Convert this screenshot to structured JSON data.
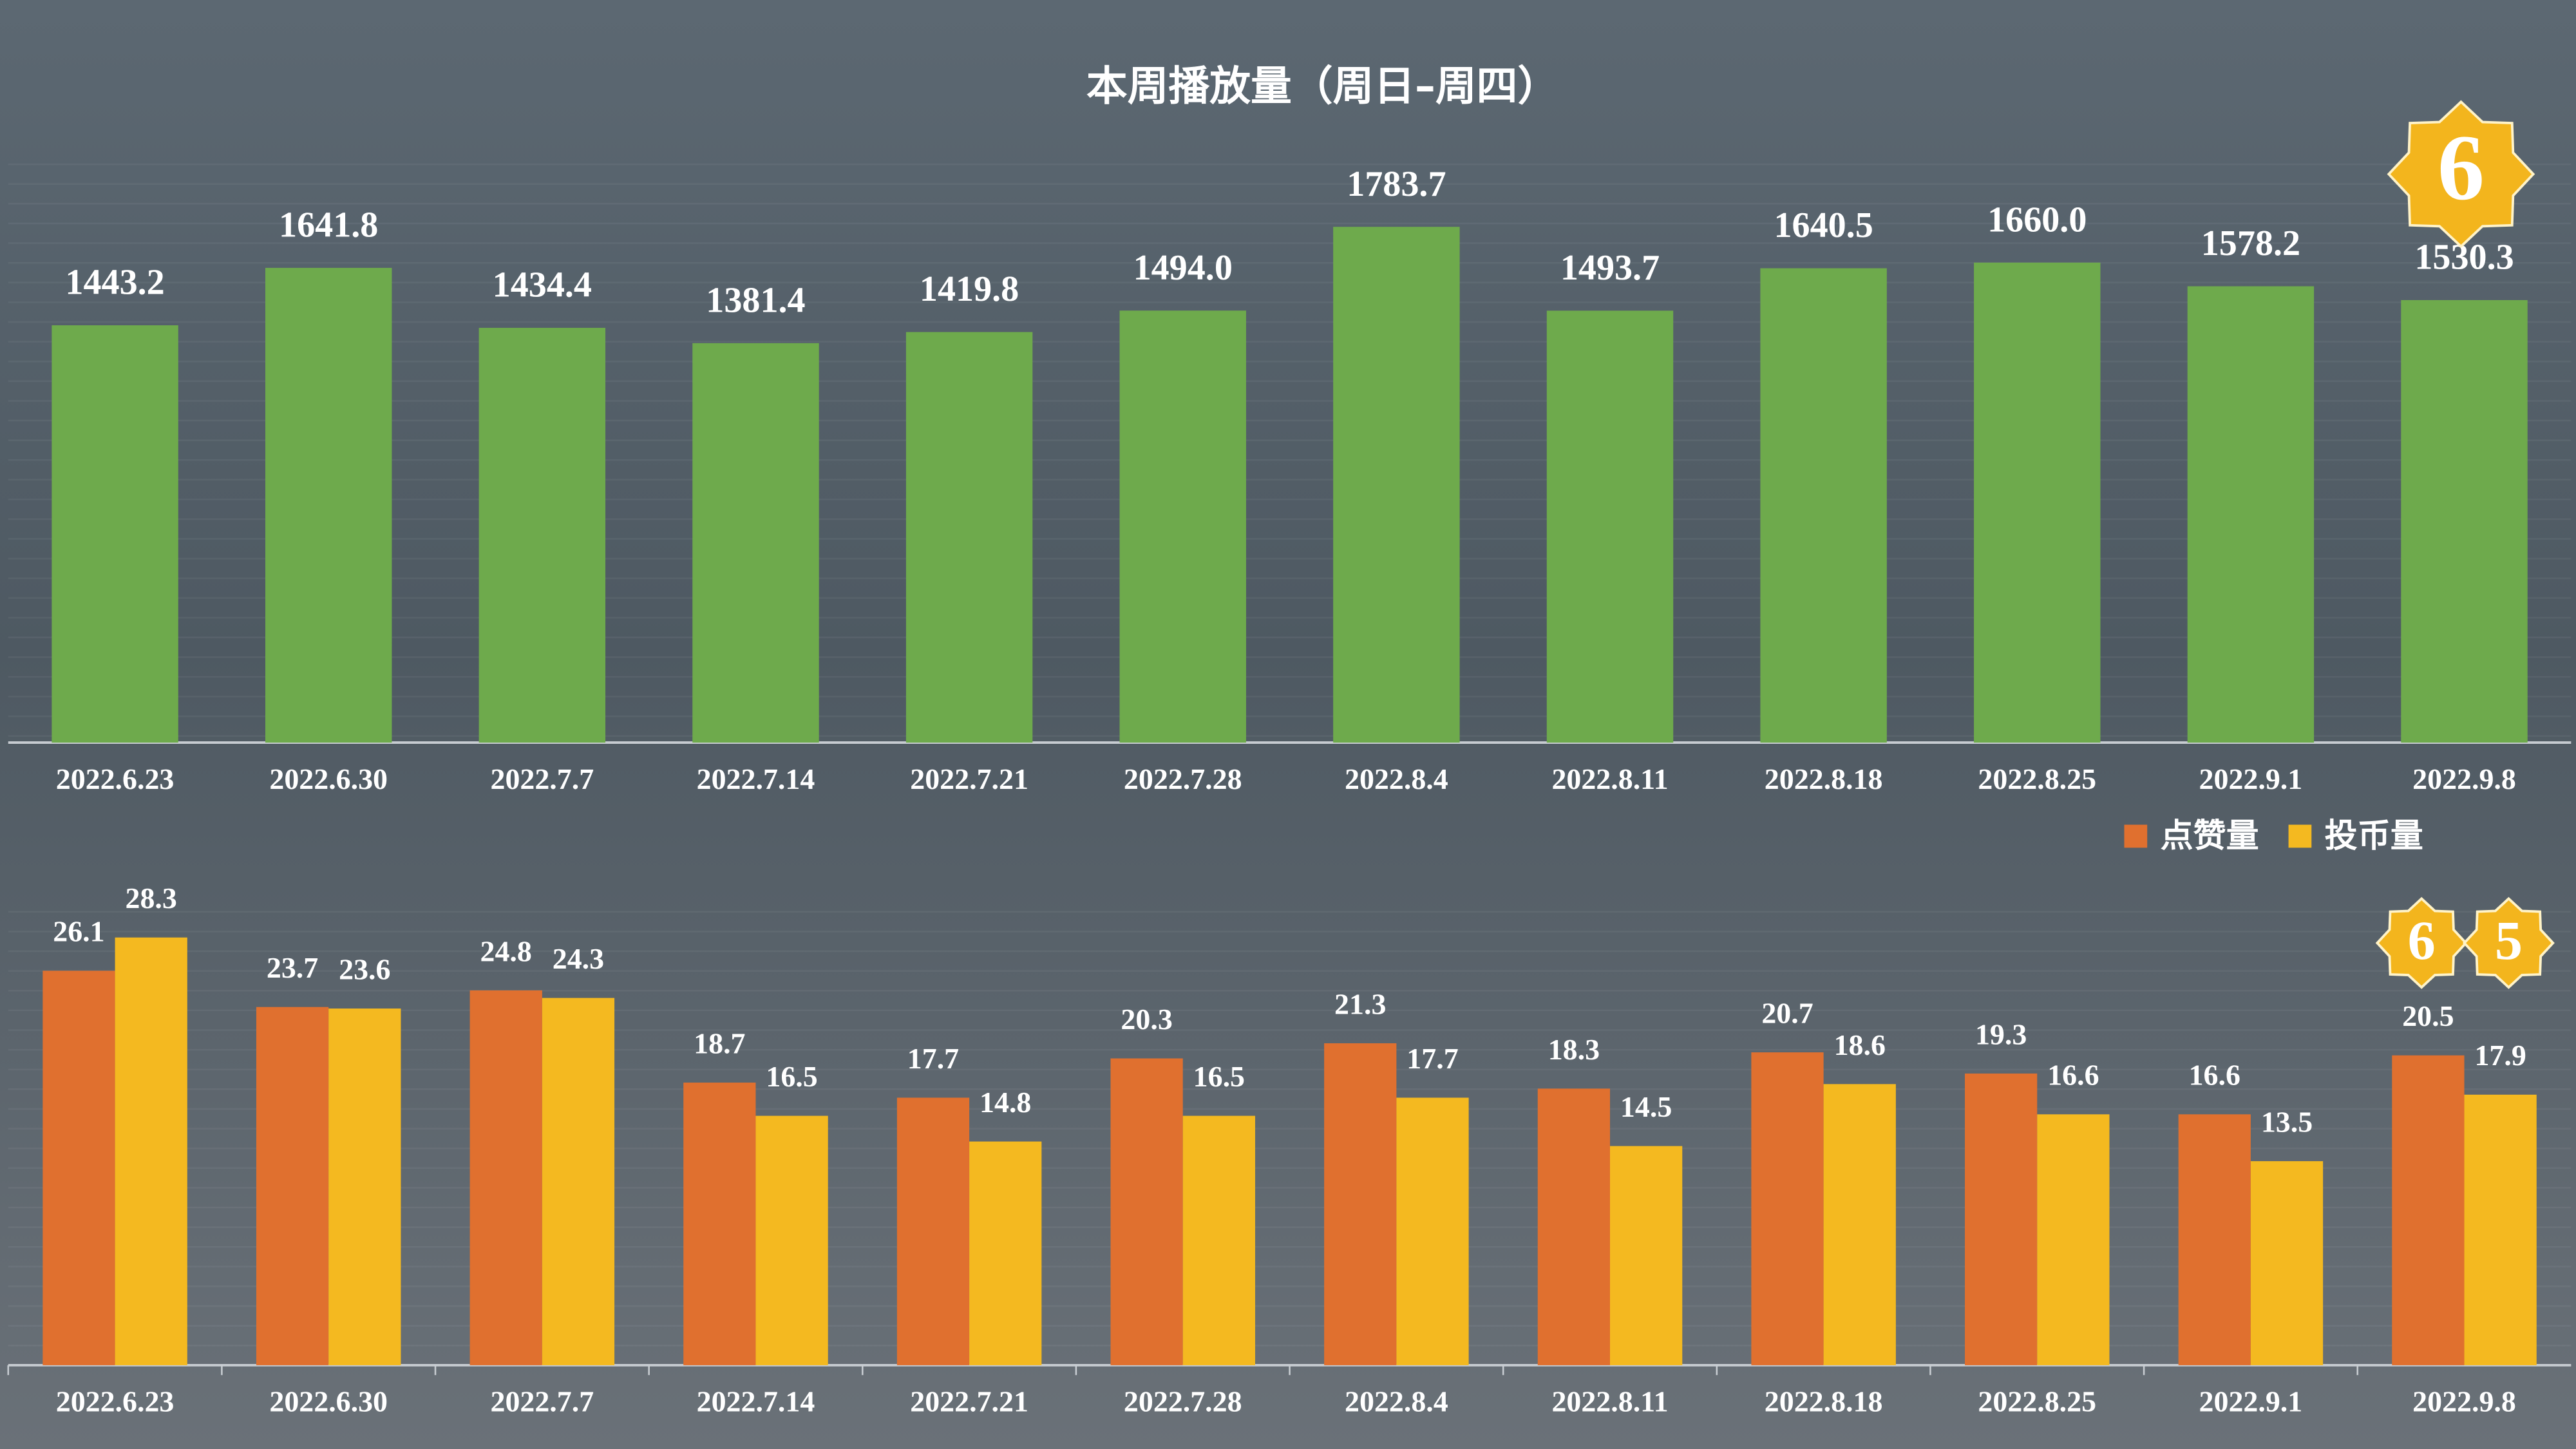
{
  "chart_data": [
    {
      "type": "bar",
      "title": "本周播放量（周日–周四）",
      "categories": [
        "2022.6.23",
        "2022.6.30",
        "2022.7.7",
        "2022.7.14",
        "2022.7.21",
        "2022.7.28",
        "2022.8.4",
        "2022.8.11",
        "2022.8.18",
        "2022.8.25",
        "2022.9.1",
        "2022.9.8"
      ],
      "values": [
        1443.2,
        1641.8,
        1434.4,
        1381.4,
        1419.8,
        1494,
        1783.7,
        1493.7,
        1640.5,
        1660,
        1578.2,
        1530.3
      ],
      "value_labels": [
        "1443.2",
        "1641.8",
        "1434.4",
        "1381.4",
        "1419.8",
        "1494.0",
        "1783.7",
        "1493.7",
        "1640.5",
        "1660.0",
        "1578.2",
        "1530.3"
      ],
      "color": "#6eaa4c",
      "ylim": [
        0,
        2000
      ],
      "annotations": [
        "6"
      ]
    },
    {
      "type": "bar",
      "categories": [
        "2022.6.23",
        "2022.6.30",
        "2022.7.7",
        "2022.7.14",
        "2022.7.21",
        "2022.7.28",
        "2022.8.4",
        "2022.8.11",
        "2022.8.18",
        "2022.8.25",
        "2022.9.1",
        "2022.9.8"
      ],
      "series": [
        {
          "name": "点赞量",
          "color": "#e0702f",
          "values": [
            26.1,
            23.7,
            24.8,
            18.7,
            17.7,
            20.3,
            21.3,
            18.3,
            20.7,
            19.3,
            16.6,
            20.5
          ]
        },
        {
          "name": "投币量",
          "color": "#f4b920",
          "values": [
            28.3,
            23.6,
            24.3,
            16.5,
            14.8,
            16.5,
            17.7,
            14.5,
            18.6,
            16.6,
            13.5,
            17.9
          ]
        }
      ],
      "ylim": [
        0,
        30
      ],
      "legend": "top-right",
      "annotations": [
        "6",
        "5"
      ]
    }
  ]
}
